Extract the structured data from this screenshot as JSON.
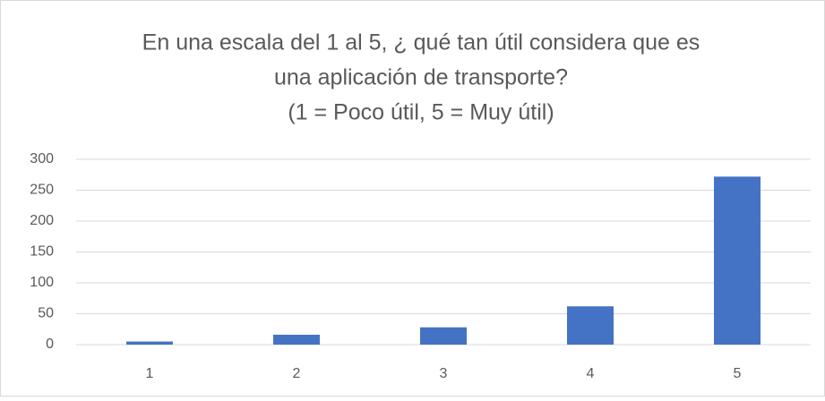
{
  "chart_data": {
    "type": "bar",
    "title": [
      "En una escala del 1 al 5, ¿ qué tan útil considera que es",
      "una aplicación de transporte?",
      "(1 = Poco útil, 5 = Muy útil)"
    ],
    "categories": [
      "1",
      "2",
      "3",
      "4",
      "5"
    ],
    "values": [
      5,
      16,
      28,
      62,
      272
    ],
    "color": "#4472c4",
    "ylim": [
      0,
      300
    ],
    "yticks": [
      0,
      50,
      100,
      150,
      200,
      250,
      300
    ],
    "grid": true
  }
}
